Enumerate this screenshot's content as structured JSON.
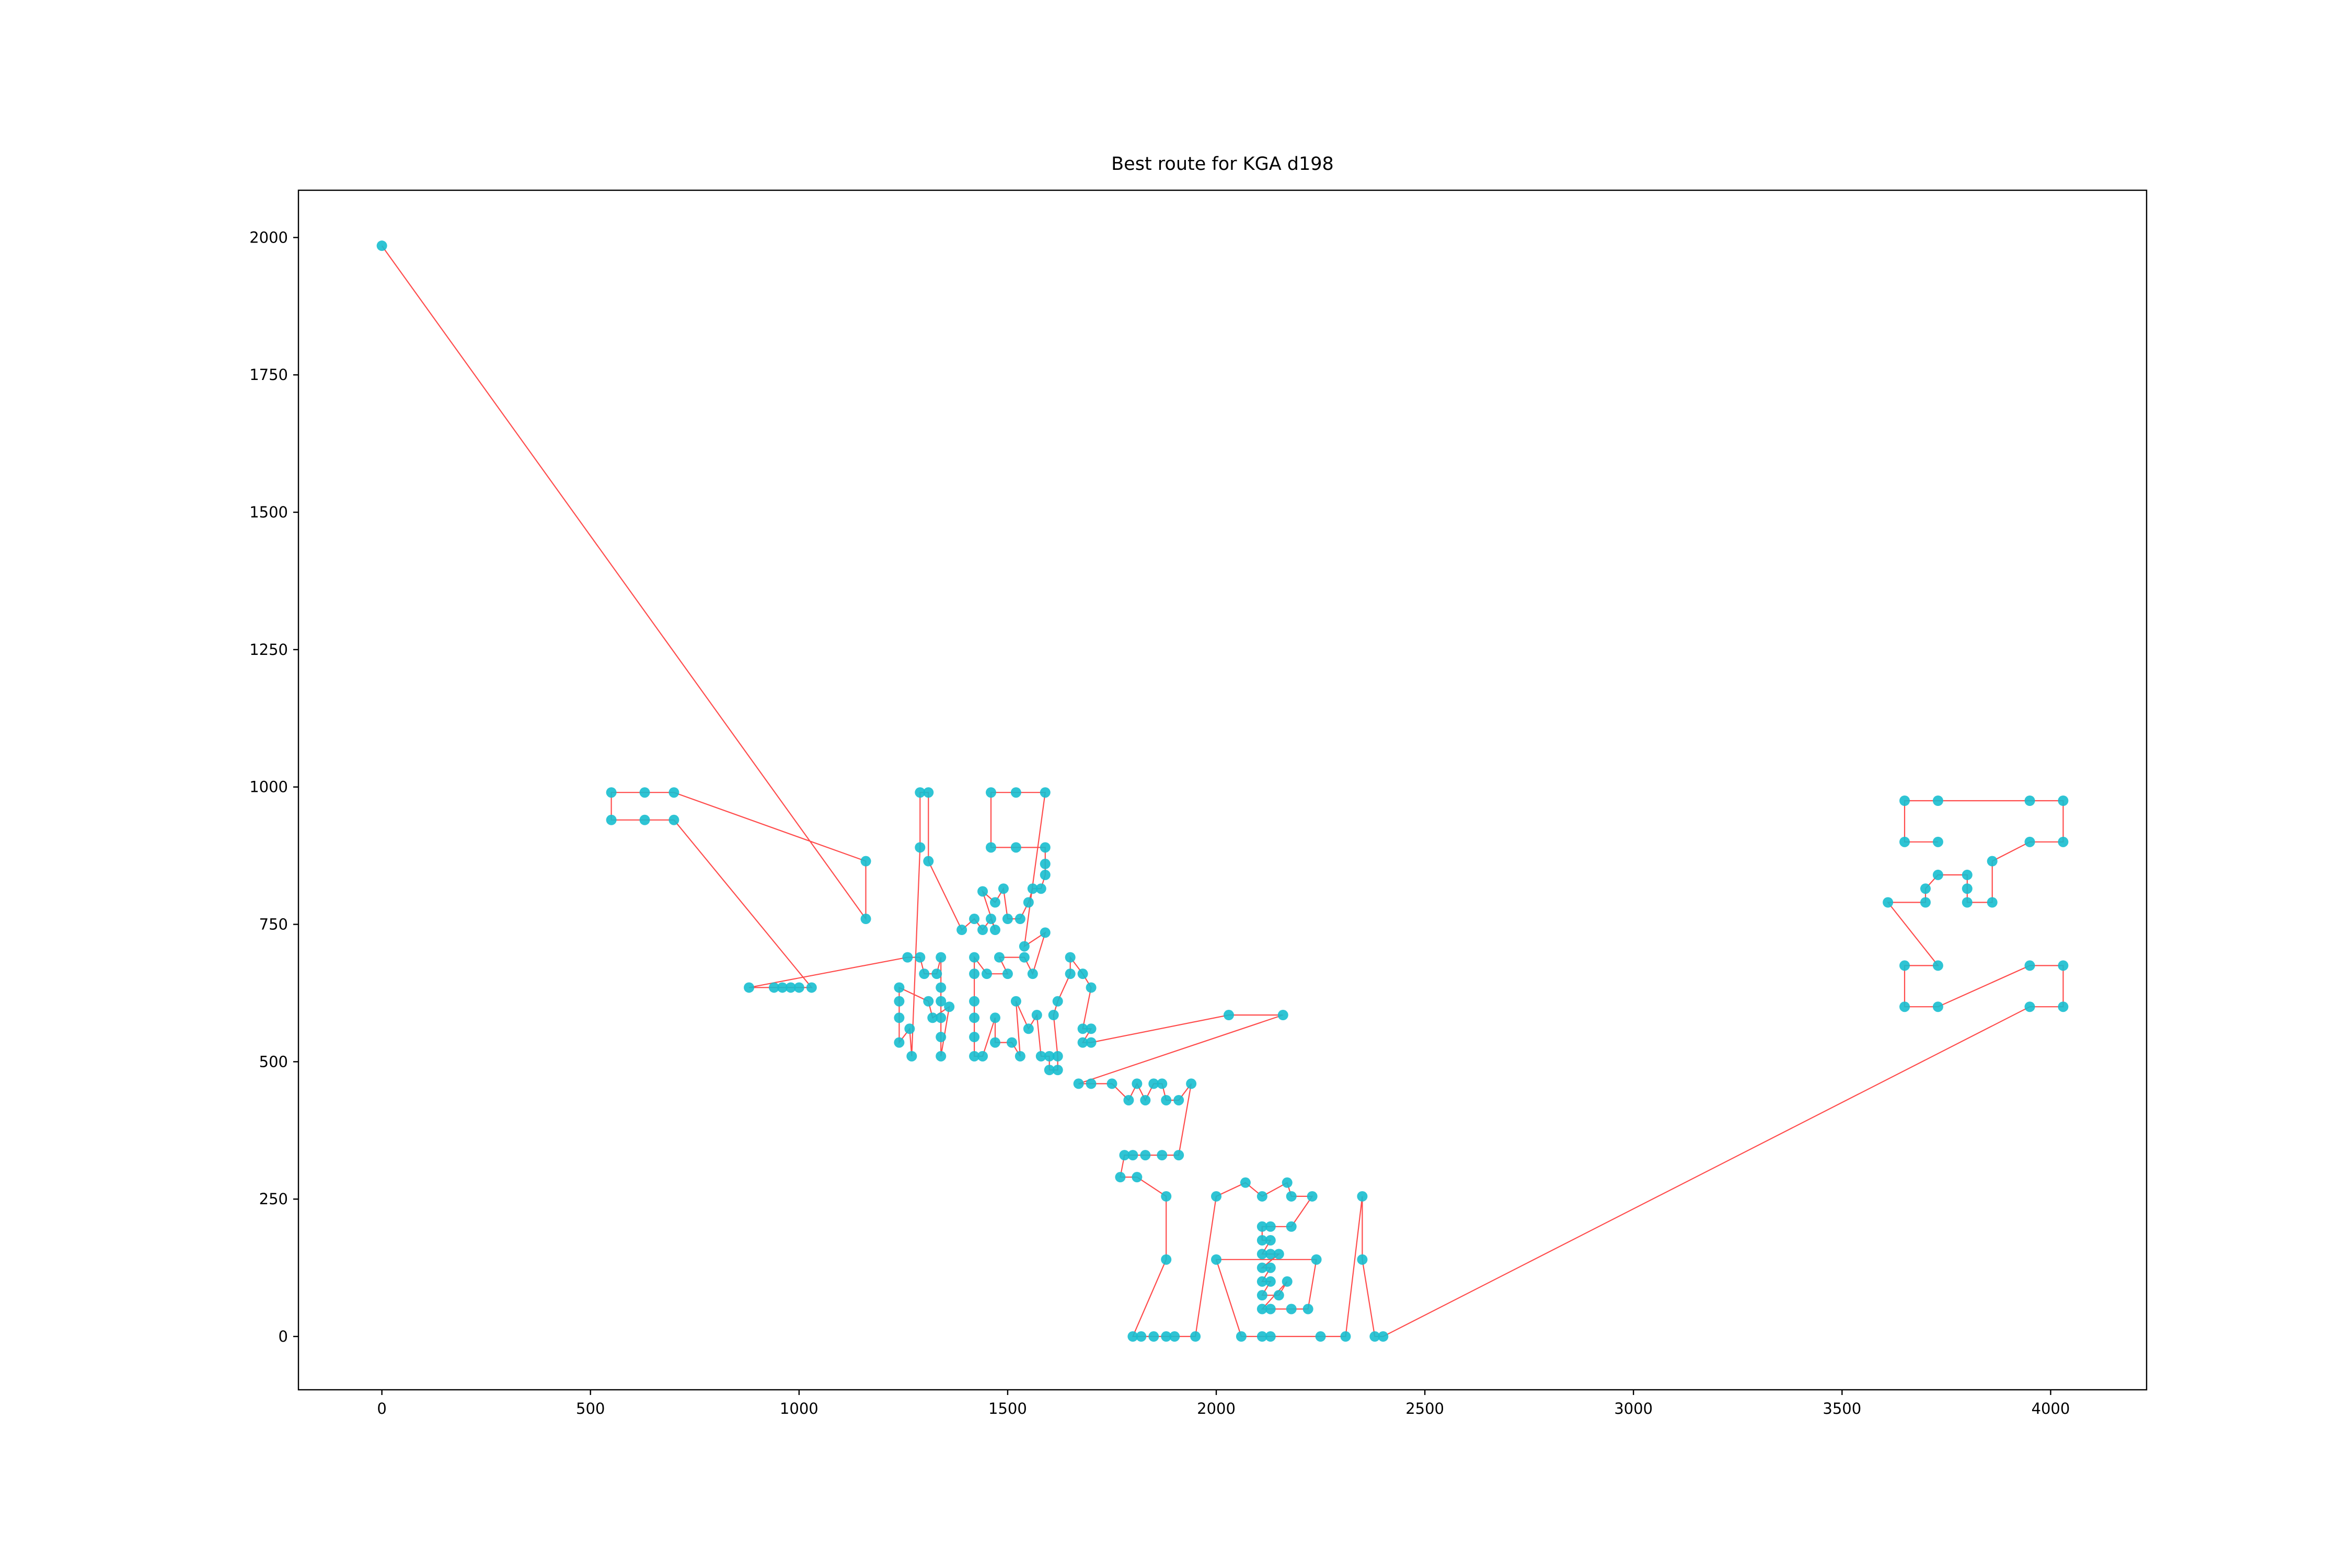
{
  "chart_data": {
    "type": "line",
    "title": "Best route for KGA d198",
    "line_color": "#ff0000",
    "marker_color": "#17becf",
    "xlim": [
      -200,
      4230
    ],
    "ylim": [
      -97,
      2086
    ],
    "xticks": [
      0,
      500,
      1000,
      1500,
      2000,
      2500,
      3000,
      3500,
      4000
    ],
    "yticks": [
      0,
      250,
      500,
      750,
      1000,
      1250,
      1500,
      1750,
      2000
    ],
    "x": [
      0,
      1160,
      1160,
      700,
      630,
      550,
      550,
      630,
      700,
      1030,
      1000,
      980,
      960,
      940,
      880,
      1260,
      1290,
      1300,
      1330,
      1340,
      1340,
      1340,
      1340,
      1340,
      1340,
      1360,
      1320,
      1310,
      1240,
      1240,
      1240,
      1240,
      1265,
      1270,
      1290,
      1290,
      1310,
      1310,
      1390,
      1420,
      1440,
      1460,
      1470,
      1440,
      1470,
      1490,
      1500,
      1530,
      1550,
      1560,
      1580,
      1590,
      1590,
      1590,
      1520,
      1460,
      1460,
      1520,
      1590,
      1540,
      1590,
      1560,
      1540,
      1480,
      1500,
      1450,
      1420,
      1420,
      1420,
      1420,
      1420,
      1420,
      1440,
      1470,
      1470,
      1510,
      1530,
      1520,
      1550,
      1570,
      1580,
      1600,
      1600,
      1620,
      1620,
      1610,
      1620,
      1650,
      1650,
      1680,
      1700,
      1680,
      1700,
      1680,
      1700,
      2030,
      2160,
      1670,
      1700,
      1750,
      1790,
      1810,
      1830,
      1850,
      1870,
      1880,
      1910,
      1940,
      1910,
      1870,
      1830,
      1800,
      1780,
      1770,
      1810,
      1880,
      1880,
      1800,
      1820,
      1850,
      1880,
      1900,
      1950,
      2000,
      2070,
      2110,
      2170,
      2180,
      2230,
      2180,
      2130,
      2110,
      2110,
      2130,
      2110,
      2130,
      2150,
      2110,
      2130,
      2110,
      2130,
      2110,
      2150,
      2170,
      2110,
      2130,
      2180,
      2220,
      2240,
      2000,
      2060,
      2110,
      2130,
      2250,
      2310,
      2350,
      2350,
      2380,
      2400,
      3950,
      4030,
      4030,
      3950,
      3730,
      3650,
      3650,
      3730,
      3610,
      3700,
      3700,
      3730,
      3800,
      3800,
      3800,
      3860,
      3860,
      3950,
      4030,
      4030,
      3950,
      3730,
      3650,
      3650,
      3730
    ],
    "y": [
      1985,
      760,
      865,
      990,
      990,
      990,
      940,
      940,
      940,
      635,
      635,
      635,
      635,
      635,
      635,
      690,
      690,
      660,
      660,
      690,
      635,
      610,
      580,
      545,
      510,
      600,
      580,
      610,
      635,
      610,
      580,
      535,
      560,
      510,
      890,
      990,
      990,
      865,
      740,
      760,
      740,
      760,
      740,
      810,
      790,
      815,
      760,
      760,
      790,
      815,
      815,
      840,
      860,
      890,
      890,
      890,
      990,
      990,
      990,
      710,
      735,
      660,
      690,
      690,
      660,
      660,
      690,
      660,
      610,
      580,
      545,
      510,
      510,
      580,
      535,
      535,
      510,
      610,
      560,
      585,
      510,
      510,
      485,
      485,
      510,
      585,
      610,
      660,
      690,
      660,
      635,
      560,
      560,
      535,
      535,
      585,
      585,
      460,
      460,
      460,
      430,
      460,
      430,
      460,
      460,
      430,
      430,
      460,
      330,
      330,
      330,
      330,
      330,
      290,
      290,
      255,
      140,
      0,
      0,
      0,
      0,
      0,
      0,
      255,
      280,
      255,
      280,
      255,
      255,
      200,
      200,
      200,
      175,
      175,
      150,
      150,
      150,
      125,
      125,
      100,
      100,
      75,
      75,
      100,
      50,
      50,
      50,
      50,
      140,
      140,
      0,
      0,
      0,
      0,
      0,
      255,
      140,
      0,
      0,
      600,
      600,
      675,
      675,
      600,
      600,
      675,
      675,
      790,
      790,
      815,
      840,
      840,
      815,
      790,
      790,
      865,
      900,
      900,
      975,
      975,
      975,
      975,
      900,
      900
    ]
  }
}
